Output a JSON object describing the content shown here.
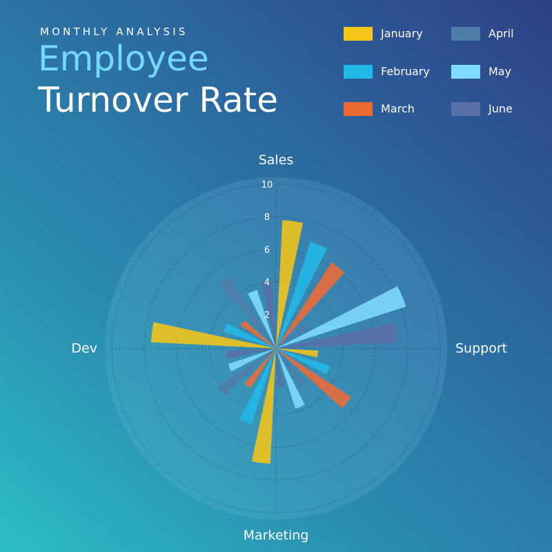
{
  "header": {
    "eyebrow": "MONTHLY ANALYSIS",
    "title_line1": "Employee",
    "title_line2": "Turnover Rate"
  },
  "colors": {
    "title_accent": "#74d8ff"
  },
  "legend": {
    "items": [
      {
        "label": "January",
        "color": "#f5c518"
      },
      {
        "label": "February",
        "color": "#22b8e8"
      },
      {
        "label": "March",
        "color": "#ee6a35"
      },
      {
        "label": "April",
        "color": "#4d7eaa"
      },
      {
        "label": "May",
        "color": "#7fdcff"
      },
      {
        "label": "June",
        "color": "#5a70a6"
      }
    ]
  },
  "chart_data": {
    "type": "polar-bar",
    "title": "Employee Turnover Rate",
    "subtitle": "MONTHLY ANALYSIS",
    "categories": [
      "Sales",
      "Support",
      "Marketing",
      "Dev"
    ],
    "radial_range": [
      0,
      10
    ],
    "radial_ticks": [
      "2",
      "4",
      "6",
      "8",
      "10"
    ],
    "grid": true,
    "legend_position": "top-right",
    "series": [
      {
        "name": "January",
        "color": "#f5c518",
        "values": [
          7.8,
          2.5,
          7.0,
          7.6
        ]
      },
      {
        "name": "February",
        "color": "#22b8e8",
        "values": [
          6.8,
          3.4,
          4.8,
          3.3
        ]
      },
      {
        "name": "March",
        "color": "#ee6a35",
        "values": [
          6.2,
          5.4,
          2.8,
          2.5
        ]
      },
      {
        "name": "April",
        "color": "#4d7eaa",
        "values": [
          2.3,
          2.8,
          4.2,
          5.2
        ]
      },
      {
        "name": "May",
        "color": "#7fdcff",
        "values": [
          8.3,
          3.8,
          3.0,
          3.7
        ]
      },
      {
        "name": "June",
        "color": "#5a70a6",
        "values": [
          7.4,
          2.3,
          3.0,
          4.0
        ]
      }
    ]
  }
}
